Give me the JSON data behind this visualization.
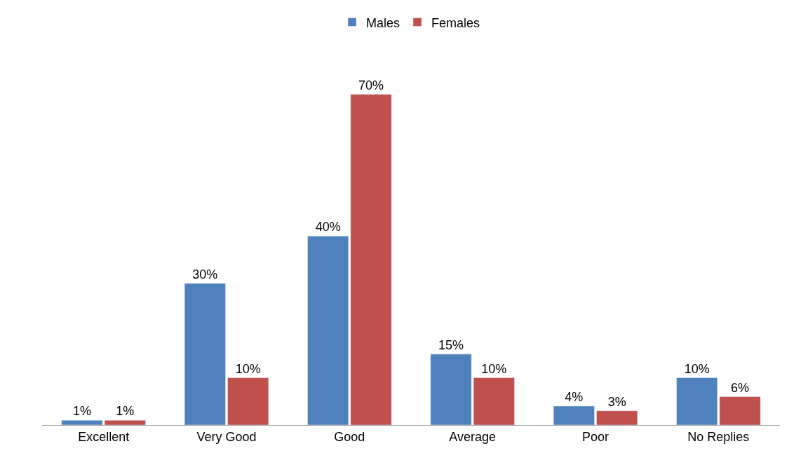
{
  "chart_data": {
    "type": "bar",
    "categories": [
      "Excellent",
      "Very Good",
      "Good",
      "Average",
      "Poor",
      "No Replies"
    ],
    "series": [
      {
        "name": "Males",
        "color": "#4f81bd",
        "values": [
          1,
          30,
          40,
          15,
          4,
          10
        ],
        "value_labels": [
          "1%",
          "30%",
          "40%",
          "15%",
          "4%",
          "10%"
        ]
      },
      {
        "name": "Females",
        "color": "#c0504d",
        "values": [
          1,
          10,
          70,
          10,
          3,
          6
        ],
        "value_labels": [
          "1%",
          "10%",
          "70%",
          "10%",
          "3%",
          "6%"
        ]
      }
    ],
    "legend": "top"
  }
}
